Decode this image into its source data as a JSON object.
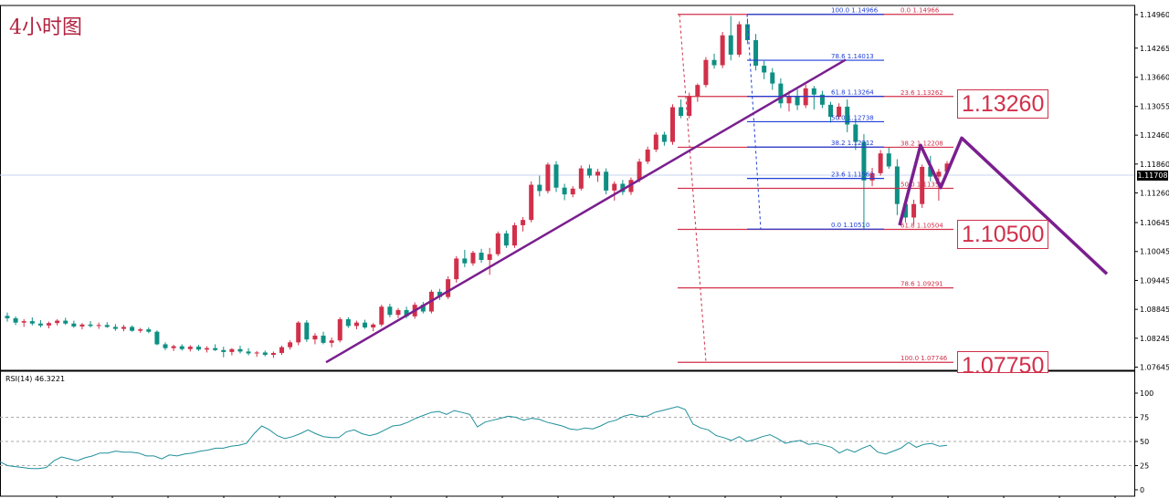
{
  "chart_data": {
    "type": "candlestick",
    "title": "4小时图",
    "y_ticks": [
      "1.14960",
      "1.14265",
      "1.13660",
      "1.13055",
      "1.12460",
      "1.11860",
      "1.11260",
      "1.10645",
      "1.10045",
      "1.09445",
      "1.08845",
      "1.08245",
      "1.07645"
    ],
    "y_tick_values": [
      1.1496,
      1.14265,
      1.1366,
      1.13055,
      1.1246,
      1.1186,
      1.1126,
      1.10645,
      1.10045,
      1.09445,
      1.08845,
      1.08245,
      1.07645
    ],
    "ylim": [
      1.0758,
      1.1515
    ],
    "current_price": "1.11708",
    "current_price_value": 1.11708,
    "candles": [
      [
        1.0871,
        1.0878,
        1.0859,
        1.0866
      ],
      [
        1.0866,
        1.087,
        1.0852,
        1.0857
      ],
      [
        1.0857,
        1.0864,
        1.0848,
        1.086
      ],
      [
        1.086,
        1.0868,
        1.0851,
        1.0855
      ],
      [
        1.0855,
        1.0862,
        1.0847,
        1.0851
      ],
      [
        1.0851,
        1.0859,
        1.0845,
        1.0856
      ],
      [
        1.0856,
        1.0864,
        1.0851,
        1.0861
      ],
      [
        1.0861,
        1.0867,
        1.0852,
        1.0855
      ],
      [
        1.0855,
        1.0861,
        1.0846,
        1.0849
      ],
      [
        1.0849,
        1.0856,
        1.0843,
        1.0853
      ],
      [
        1.0853,
        1.086,
        1.0847,
        1.085
      ],
      [
        1.085,
        1.0857,
        1.0844,
        1.0852
      ],
      [
        1.0852,
        1.0858,
        1.0846,
        1.0848
      ],
      [
        1.0848,
        1.0854,
        1.084,
        1.0844
      ],
      [
        1.0844,
        1.0852,
        1.0839,
        1.0848
      ],
      [
        1.0848,
        1.0851,
        1.0838,
        1.084
      ],
      [
        1.084,
        1.0846,
        1.0836,
        1.0843
      ],
      [
        1.0843,
        1.0847,
        1.0835,
        1.0838
      ],
      [
        1.0838,
        1.0841,
        1.081,
        1.0812
      ],
      [
        1.0812,
        1.0816,
        1.08,
        1.0804
      ],
      [
        1.0804,
        1.0811,
        1.0798,
        1.0808
      ],
      [
        1.0808,
        1.0812,
        1.0799,
        1.0802
      ],
      [
        1.0802,
        1.081,
        1.0797,
        1.0807
      ],
      [
        1.0807,
        1.0811,
        1.0798,
        1.0801
      ],
      [
        1.0801,
        1.0808,
        1.0795,
        1.0804
      ],
      [
        1.0804,
        1.0812,
        1.0798,
        1.08
      ],
      [
        1.08,
        1.0807,
        1.0785,
        1.0796
      ],
      [
        1.0796,
        1.0804,
        1.0789,
        1.0802
      ],
      [
        1.0802,
        1.0809,
        1.0793,
        1.0797
      ],
      [
        1.0797,
        1.0804,
        1.0789,
        1.0793
      ],
      [
        1.0793,
        1.0798,
        1.0786,
        1.0795
      ],
      [
        1.0795,
        1.0799,
        1.0787,
        1.079
      ],
      [
        1.079,
        1.0797,
        1.0784,
        1.0794
      ],
      [
        1.0794,
        1.0809,
        1.079,
        1.0806
      ],
      [
        1.0806,
        1.082,
        1.0801,
        1.0816
      ],
      [
        1.0816,
        1.086,
        1.081,
        1.0857
      ],
      [
        1.0857,
        1.0862,
        1.0817,
        1.0822
      ],
      [
        1.0822,
        1.0835,
        1.0812,
        1.083
      ],
      [
        1.083,
        1.0838,
        1.0812,
        1.0815
      ],
      [
        1.0815,
        1.0826,
        1.0806,
        1.082
      ],
      [
        1.082,
        1.0868,
        1.0816,
        1.0864
      ],
      [
        1.0864,
        1.0868,
        1.0846,
        1.085
      ],
      [
        1.085,
        1.0861,
        1.0843,
        1.0857
      ],
      [
        1.0857,
        1.0863,
        1.0844,
        1.0847
      ],
      [
        1.0847,
        1.0856,
        1.0839,
        1.0853
      ],
      [
        1.0853,
        1.0894,
        1.0849,
        1.089
      ],
      [
        1.089,
        1.0896,
        1.0868,
        1.0873
      ],
      [
        1.0873,
        1.0887,
        1.0866,
        1.0883
      ],
      [
        1.0883,
        1.089,
        1.0866,
        1.087
      ],
      [
        1.087,
        1.0899,
        1.0865,
        1.0894
      ],
      [
        1.0894,
        1.09,
        1.0876,
        1.088
      ],
      [
        1.088,
        1.0925,
        1.0876,
        1.0921
      ],
      [
        1.0921,
        1.0927,
        1.0904,
        1.091
      ],
      [
        1.091,
        1.0953,
        1.0906,
        1.0947
      ],
      [
        1.0947,
        1.0995,
        1.094,
        1.099
      ],
      [
        1.099,
        1.1008,
        1.0972,
        1.098
      ],
      [
        1.098,
        1.1006,
        1.0975,
        1.1002
      ],
      [
        1.1002,
        1.101,
        1.0981,
        1.0987
      ],
      [
        1.0987,
        1.1012,
        1.0956,
        1.0999
      ],
      [
        1.0999,
        1.1046,
        1.0995,
        1.1042
      ],
      [
        1.1042,
        1.1048,
        1.1012,
        1.1017
      ],
      [
        1.1017,
        1.1064,
        1.1012,
        1.1059
      ],
      [
        1.1059,
        1.1076,
        1.1046,
        1.107
      ],
      [
        1.107,
        1.115,
        1.1065,
        1.1143
      ],
      [
        1.1143,
        1.1162,
        1.1119,
        1.113
      ],
      [
        1.113,
        1.1189,
        1.1125,
        1.1185
      ],
      [
        1.1185,
        1.1192,
        1.1128,
        1.1137
      ],
      [
        1.1137,
        1.1145,
        1.1111,
        1.1123
      ],
      [
        1.1123,
        1.114,
        1.1117,
        1.1135
      ],
      [
        1.1135,
        1.1183,
        1.1131,
        1.1177
      ],
      [
        1.1177,
        1.1185,
        1.1157,
        1.1162
      ],
      [
        1.1162,
        1.1176,
        1.1149,
        1.117
      ],
      [
        1.117,
        1.1177,
        1.1123,
        1.1131
      ],
      [
        1.1131,
        1.115,
        1.111,
        1.1145
      ],
      [
        1.1145,
        1.1153,
        1.1122,
        1.1128
      ],
      [
        1.1128,
        1.1158,
        1.1122,
        1.1153
      ],
      [
        1.1153,
        1.1197,
        1.1148,
        1.1191
      ],
      [
        1.1191,
        1.1222,
        1.1186,
        1.1216
      ],
      [
        1.1216,
        1.1252,
        1.1211,
        1.1247
      ],
      [
        1.1247,
        1.1253,
        1.1224,
        1.1232
      ],
      [
        1.1232,
        1.131,
        1.1226,
        1.1304
      ],
      [
        1.1304,
        1.132,
        1.1281,
        1.1286
      ],
      [
        1.1286,
        1.1334,
        1.1281,
        1.1327
      ],
      [
        1.1327,
        1.1353,
        1.1315,
        1.135
      ],
      [
        1.135,
        1.1408,
        1.1345,
        1.1402
      ],
      [
        1.1402,
        1.1415,
        1.1384,
        1.1391
      ],
      [
        1.1391,
        1.146,
        1.1385,
        1.1453
      ],
      [
        1.1453,
        1.1493,
        1.1401,
        1.1413
      ],
      [
        1.1413,
        1.1482,
        1.1408,
        1.1476
      ],
      [
        1.1476,
        1.1488,
        1.1435,
        1.1443
      ],
      [
        1.1443,
        1.1456,
        1.138,
        1.139
      ],
      [
        1.139,
        1.14,
        1.1362,
        1.1376
      ],
      [
        1.1376,
        1.1385,
        1.134,
        1.1353
      ],
      [
        1.1353,
        1.1364,
        1.1302,
        1.1312
      ],
      [
        1.1312,
        1.1338,
        1.1295,
        1.1326
      ],
      [
        1.1326,
        1.1341,
        1.1298,
        1.1308
      ],
      [
        1.1308,
        1.1351,
        1.1302,
        1.1343
      ],
      [
        1.1343,
        1.1348,
        1.1299,
        1.133
      ],
      [
        1.133,
        1.1338,
        1.1302,
        1.1309
      ],
      [
        1.1309,
        1.1315,
        1.1272,
        1.1284
      ],
      [
        1.1284,
        1.1312,
        1.1279,
        1.1305
      ],
      [
        1.1305,
        1.132,
        1.1252,
        1.1268
      ],
      [
        1.1268,
        1.1279,
        1.1215,
        1.1232
      ],
      [
        1.1232,
        1.1248,
        1.1049,
        1.1152
      ],
      [
        1.1152,
        1.1178,
        1.114,
        1.1167
      ],
      [
        1.1167,
        1.1215,
        1.1162,
        1.1208
      ],
      [
        1.1208,
        1.1221,
        1.1176,
        1.1181
      ],
      [
        1.1181,
        1.1196,
        1.108,
        1.1103
      ],
      [
        1.1103,
        1.1116,
        1.1065,
        1.1075
      ],
      [
        1.1075,
        1.1112,
        1.106,
        1.1103
      ],
      [
        1.1103,
        1.1185,
        1.1095,
        1.118
      ],
      [
        1.118,
        1.1203,
        1.115,
        1.116
      ],
      [
        1.116,
        1.1176,
        1.111,
        1.117
      ],
      [
        1.117,
        1.1192,
        1.1165,
        1.1187
      ]
    ],
    "fibonacci": [
      {
        "color": "#1f3fd6",
        "levels": [
          [
            "100.0",
            "1.14966",
            1.14966
          ],
          [
            "78.6",
            "1.14013",
            1.14013
          ],
          [
            "61.8",
            "1.13264",
            1.13264
          ],
          [
            "50.0",
            "1.12738",
            1.12738
          ],
          [
            "38.2",
            "1.12212",
            1.12212
          ],
          [
            "23.6",
            "1.11562",
            1.11562
          ],
          [
            "0.0",
            "1.10510",
            1.1051
          ]
        ]
      },
      {
        "color": "#d1304a",
        "levels": [
          [
            "0.0",
            "1.14966",
            1.14966
          ],
          [
            "23.6",
            "1.13262",
            1.13262
          ],
          [
            "38.2",
            "1.12208",
            1.12208
          ],
          [
            "50.0",
            "1.11356",
            1.11356
          ],
          [
            "61.8",
            "1.10504",
            1.10504
          ],
          [
            "78.6",
            "1.09291",
            1.09291
          ],
          [
            "100.0",
            "1.07746",
            1.07746
          ]
        ]
      }
    ],
    "trendline": [
      [
        1.07746
      ],
      [
        1.14025
      ]
    ],
    "projection": [
      1.1059,
      1.1225,
      1.1137,
      1.124,
      1.0958
    ],
    "key_levels": [
      {
        "label": "1.13260",
        "value": 1.1326
      },
      {
        "label": "1.10500",
        "value": 1.105
      },
      {
        "label": "1.07750",
        "value": 1.0775
      }
    ],
    "rsi": {
      "label": "RSI(14) 46.3221",
      "ticks": [
        "100",
        "75",
        "50",
        "25",
        "0"
      ],
      "tick_values": [
        100,
        75,
        50,
        25,
        0
      ],
      "levels": [
        75,
        50,
        25
      ],
      "values": [
        29,
        25,
        24,
        23,
        22,
        22,
        23,
        30,
        34,
        32,
        30,
        33,
        35,
        38,
        38,
        40,
        39,
        39,
        38,
        35,
        35,
        32,
        36,
        35,
        37,
        38,
        40,
        41,
        43,
        43,
        45,
        46,
        48,
        58,
        66,
        62,
        56,
        53,
        55,
        58,
        62,
        58,
        55,
        54,
        54,
        60,
        62,
        58,
        56,
        58,
        62,
        66,
        67,
        70,
        74,
        77,
        80,
        81,
        78,
        82,
        80,
        78,
        65,
        70,
        72,
        74,
        76,
        75,
        72,
        74,
        73,
        70,
        68,
        66,
        63,
        62,
        64,
        63,
        66,
        70,
        72,
        76,
        78,
        76,
        76,
        80,
        82,
        84,
        86,
        83,
        68,
        64,
        62,
        56,
        54,
        51,
        55,
        50,
        52,
        55,
        57,
        53,
        48,
        50,
        51,
        47,
        48,
        46,
        44,
        38,
        42,
        39,
        43,
        46,
        39,
        37,
        40,
        43,
        49,
        44,
        47,
        48,
        45,
        46
      ]
    }
  }
}
